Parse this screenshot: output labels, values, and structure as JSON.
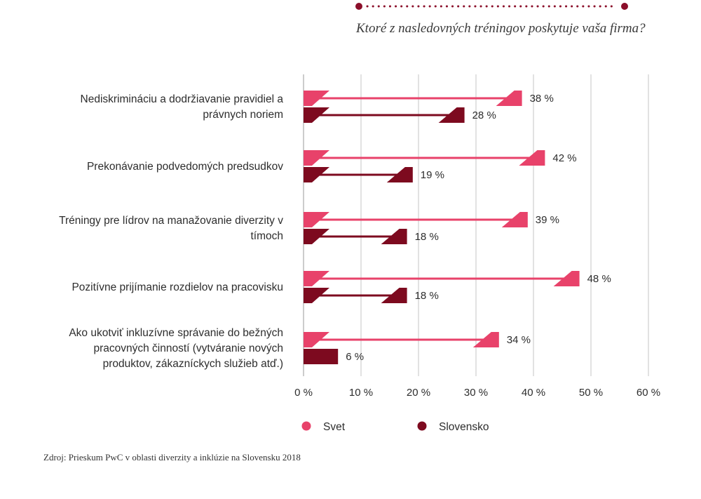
{
  "header": {
    "question": "Ktoré z nasledovných tréningov poskytuje vaša firma?"
  },
  "source": "Zdroj: Prieskum PwC v oblasti diverzity a inklúzie na Slovensku 2018",
  "colors": {
    "svet": "#e8426a",
    "slovensko": "#7d0a1f",
    "accent": "#8b0f2a",
    "grid": "#c4c4c4",
    "text": "#2d2d2d"
  },
  "chart_data": {
    "type": "bar",
    "orientation": "horizontal",
    "categories": [
      [
        "Nediskrimináciu a dodržiavanie pravidiel a",
        "právnych noriem"
      ],
      [
        "Prekonávanie podvedomých predsudkov"
      ],
      [
        "Tréningy pre lídrov na manažovanie diverzity v",
        "tímoch"
      ],
      [
        "Pozitívne prijímanie rozdielov na pracovisku"
      ],
      [
        "Ako ukotviť inkluzívne správanie do bežných",
        "pracovných činností (vytváranie nových",
        "produktov, zákazníckych služieb atď.)"
      ]
    ],
    "series": [
      {
        "name": "Svet",
        "color": "#e8426a",
        "values": [
          38,
          42,
          39,
          48,
          34
        ],
        "labels": [
          "38 %",
          "42 %",
          "39 %",
          "48 %",
          "34 %"
        ]
      },
      {
        "name": "Slovensko",
        "color": "#7d0a1f",
        "values": [
          28,
          19,
          18,
          18,
          6
        ],
        "labels": [
          "28 %",
          "19 %",
          "18 %",
          "18 %",
          "6 %"
        ]
      }
    ],
    "xlim": [
      0,
      60
    ],
    "xticks": [
      "0 %",
      "10 %",
      "20 %",
      "30 %",
      "40 %",
      "50 %",
      "60 %"
    ],
    "grid": true,
    "legend_position": "bottom-left"
  }
}
